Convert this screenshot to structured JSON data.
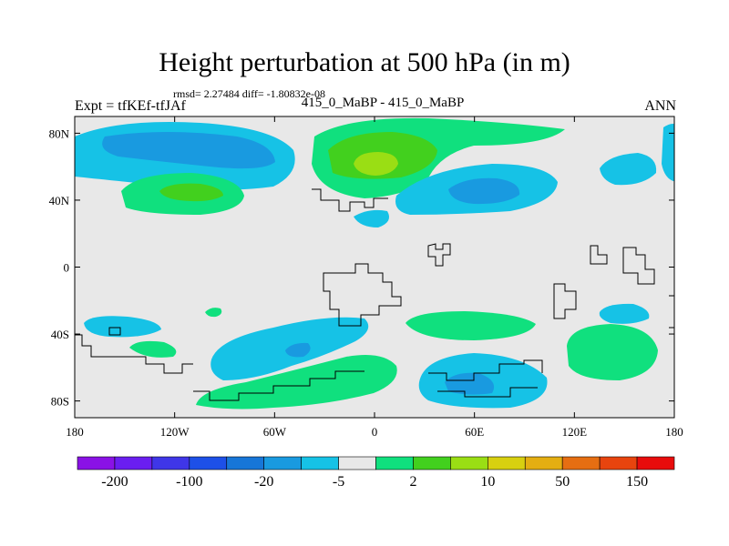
{
  "title": "Height perturbation at 500 hPa (in m)",
  "stats": "rmsd= 2.27484 diff= -1.80832e-08",
  "left_label": "Expt = tfKEf-tfJAf",
  "center_label": "415_0_MaBP - 415_0_MaBP",
  "right_label": "ANN",
  "axes": {
    "lon_ticks": [
      "180",
      "120W",
      "60W",
      "0",
      "60E",
      "120E",
      "180"
    ],
    "lat_ticks": [
      "80N",
      "40N",
      "0",
      "40S",
      "80S"
    ]
  },
  "colorbar": {
    "colors": [
      "#8a12e6",
      "#6a1ef0",
      "#3f36e8",
      "#1d50e8",
      "#1776d8",
      "#199ae0",
      "#16c2e6",
      "#e8e8e8",
      "#10e07e",
      "#42d01e",
      "#9ade14",
      "#d8d010",
      "#e4ae12",
      "#e66e12",
      "#e8440e",
      "#e80c0c"
    ],
    "labels": [
      "-200",
      "-100",
      "-20",
      "-5",
      "2",
      "10",
      "50",
      "150"
    ],
    "label_boundary_index": [
      1,
      3,
      5,
      7,
      9,
      11,
      13,
      15
    ]
  },
  "field_colors": {
    "background": "#e8e8e8",
    "light_blue": "#16c2e6",
    "mid_blue": "#199ae0",
    "green": "#10e07e",
    "yellow_green": "#42d01e",
    "pale_yellow": "#9ade14",
    "coast": "#000000"
  }
}
